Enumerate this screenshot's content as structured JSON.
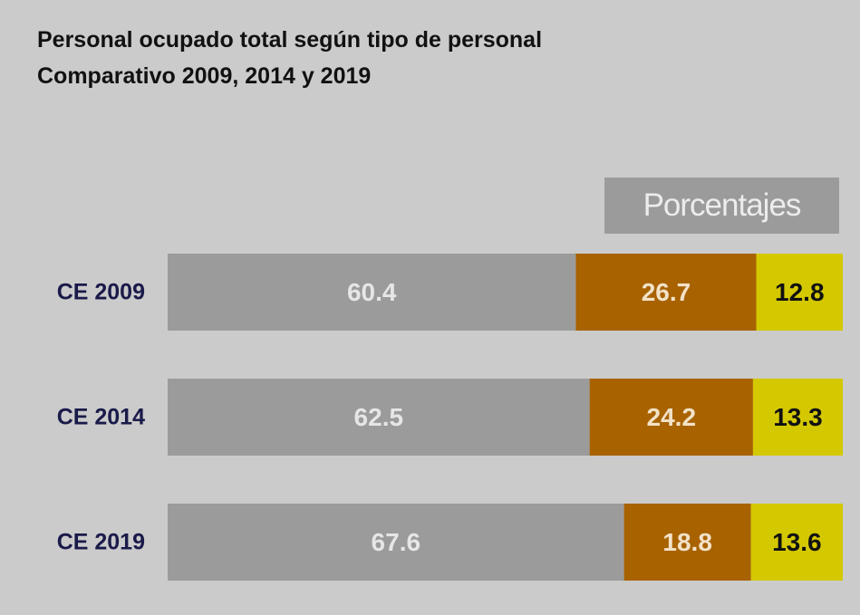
{
  "title": "Personal ocupado total según tipo de personal",
  "subtitle": "Comparativo 2009, 2014 y 2019",
  "unit_label": "Porcentajes",
  "colors": {
    "background": "#cbcbcb",
    "series": [
      "#9b9b9b",
      "#a86200",
      "#d4c800"
    ],
    "value_text": [
      "#e6e6e6",
      "#f2e2c8",
      "#111111"
    ]
  },
  "chart_data": {
    "type": "bar",
    "orientation": "horizontal",
    "stacked": true,
    "title": "Personal ocupado total según tipo de personal",
    "subtitle": "Comparativo 2009, 2014 y 2019",
    "categories": [
      "CE 2009",
      "CE 2014",
      "CE 2019"
    ],
    "series": [
      {
        "values": [
          60.4,
          62.5,
          67.6
        ]
      },
      {
        "values": [
          26.7,
          24.2,
          18.8
        ]
      },
      {
        "values": [
          12.8,
          13.3,
          13.6
        ]
      }
    ],
    "value_labels": [
      [
        "60.4",
        "26.7",
        "12.8"
      ],
      [
        "62.5",
        "24.2",
        "13.3"
      ],
      [
        "67.6",
        "18.8",
        "13.6"
      ]
    ],
    "xlim": [
      0,
      100
    ],
    "unit": "Porcentajes",
    "grid": false,
    "legend": "none"
  }
}
